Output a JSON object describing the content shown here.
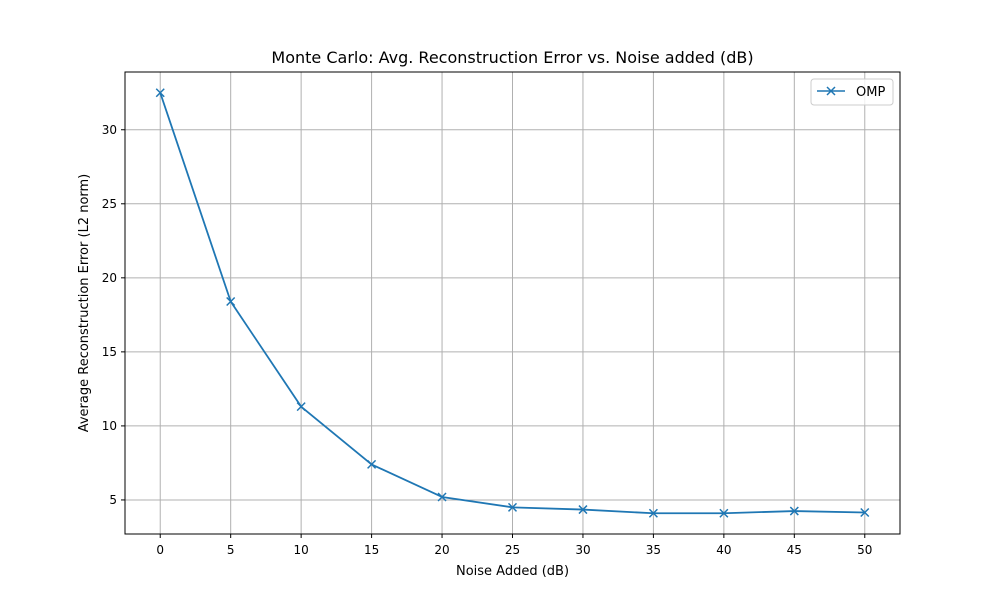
{
  "chart_data": {
    "type": "line",
    "title": "Monte Carlo: Avg. Reconstruction Error vs. Noise added (dB)",
    "xlabel": "Noise Added (dB)",
    "ylabel": "Average Reconstruction Error (L2 norm)",
    "x": [
      0,
      5,
      10,
      15,
      20,
      25,
      30,
      35,
      40,
      45,
      50
    ],
    "series": [
      {
        "name": "OMP",
        "values": [
          32.5,
          18.4,
          11.3,
          7.4,
          5.2,
          4.5,
          4.35,
          4.1,
          4.1,
          4.25,
          4.15
        ],
        "color": "#1f77b4",
        "marker": "x"
      }
    ],
    "xlim": [
      -2.5,
      52.5
    ],
    "ylim": [
      2.7,
      33.9
    ],
    "xticks": [
      "0",
      "5",
      "10",
      "15",
      "20",
      "25",
      "30",
      "35",
      "40",
      "45",
      "50"
    ],
    "yticks": [
      "5",
      "10",
      "15",
      "20",
      "25",
      "30"
    ],
    "grid": true,
    "grid_color": "#b0b0b0",
    "legend_position": "top-right"
  }
}
